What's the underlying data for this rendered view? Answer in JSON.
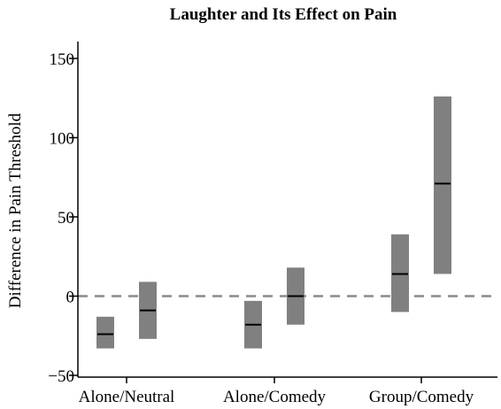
{
  "chart_data": {
    "type": "bar",
    "title": "Laughter and Its Effect on Pain",
    "xlabel": "",
    "ylabel": "Difference in Pain Threshold",
    "ylim": [
      -50,
      150
    ],
    "yticks": [
      -50,
      0,
      50,
      100,
      150
    ],
    "ytick_labels": [
      "−50",
      "0",
      "50",
      "100",
      "150"
    ],
    "categories": [
      "Alone/Neutral",
      "Alone/Comedy",
      "Group/Comedy"
    ],
    "reference_line": 0,
    "grid": false,
    "colors": {
      "range": "#808080",
      "median": "#000000",
      "reference": "#8a8a8a"
    },
    "groups": [
      {
        "category": "Alone/Neutral",
        "ranges": [
          {
            "low": -33,
            "high": -13,
            "mid": -24
          },
          {
            "low": -27,
            "high": 9,
            "mid": -9
          }
        ]
      },
      {
        "category": "Alone/Comedy",
        "ranges": [
          {
            "low": -33,
            "high": -3,
            "mid": -18
          },
          {
            "low": -18,
            "high": 18,
            "mid": 0
          }
        ]
      },
      {
        "category": "Group/Comedy",
        "ranges": [
          {
            "low": -10,
            "high": 39,
            "mid": 14
          },
          {
            "low": 14,
            "high": 126,
            "mid": 71
          }
        ]
      }
    ]
  }
}
